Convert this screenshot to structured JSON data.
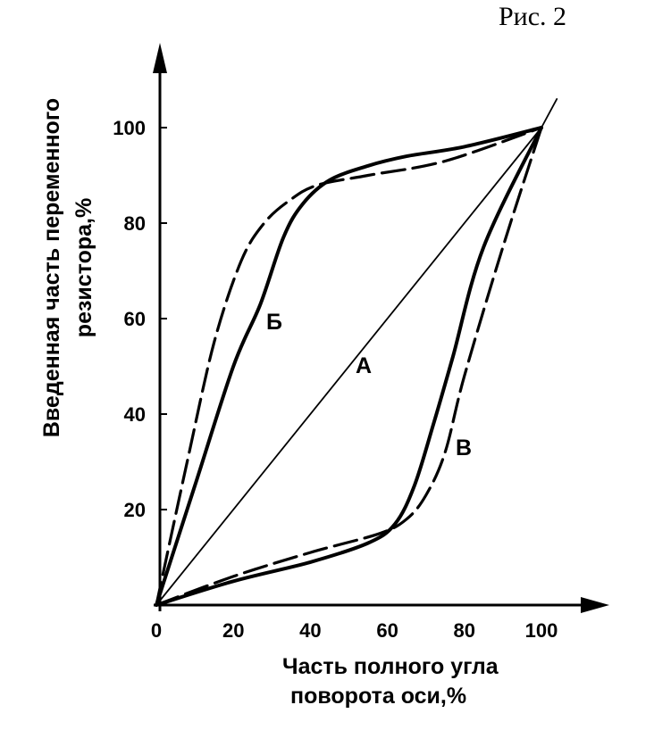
{
  "figure_label": "Рис. 2",
  "chart_data": {
    "type": "line",
    "title": "",
    "xlabel": [
      "Часть полного угла",
      "поворота оси,%"
    ],
    "ylabel": [
      "Введенная часть переменного",
      "резистора,%"
    ],
    "xlim": [
      0,
      110
    ],
    "ylim": [
      0,
      110
    ],
    "xticks": [
      "0",
      "20",
      "40",
      "60",
      "80",
      "100"
    ],
    "yticks": [
      "20",
      "40",
      "60",
      "80",
      "100"
    ],
    "grid": false,
    "series": [
      {
        "name": "А",
        "style": "solid-thin",
        "x": [
          0,
          100
        ],
        "y": [
          0,
          100
        ]
      },
      {
        "name": "Б",
        "style": "solid-thick",
        "x": [
          0,
          10,
          20,
          27,
          33,
          38,
          45,
          55,
          65,
          80,
          100
        ],
        "y": [
          0,
          25,
          50,
          63,
          77,
          84,
          89,
          92,
          94,
          96,
          100
        ]
      },
      {
        "name": "",
        "style": "dashed",
        "x": [
          0,
          8,
          15,
          22,
          28,
          35,
          42,
          55,
          75,
          100
        ],
        "y": [
          0,
          30,
          55,
          72,
          80,
          85,
          88,
          90,
          93,
          100
        ]
      },
      {
        "name": "В",
        "style": "solid-thick",
        "x": [
          0,
          20,
          40,
          55,
          62,
          67,
          72,
          77,
          85,
          100
        ],
        "y": [
          0,
          5,
          9,
          13,
          17,
          25,
          38,
          52,
          75,
          100
        ]
      },
      {
        "name": "",
        "style": "dashed",
        "x": [
          0,
          20,
          40,
          58,
          65,
          70,
          75,
          80,
          90,
          100
        ],
        "y": [
          0,
          6,
          11,
          15,
          18,
          23,
          32,
          48,
          75,
          100
        ]
      }
    ]
  }
}
